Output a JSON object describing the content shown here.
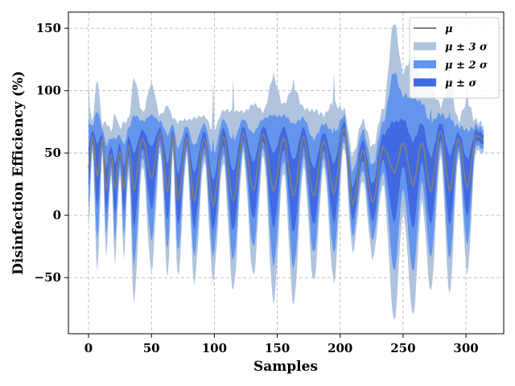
{
  "chart_data": {
    "type": "area",
    "xlabel": "Samples",
    "ylabel": "Disinfection Efficiency (%)",
    "xlim": [
      -16,
      330
    ],
    "ylim": [
      -95,
      163
    ],
    "xticks": [
      0,
      50,
      100,
      150,
      200,
      250,
      300
    ],
    "yticks": [
      -50,
      0,
      50,
      100,
      150
    ],
    "xtick_labels": [
      "0",
      "50",
      "100",
      "150",
      "200",
      "250",
      "300"
    ],
    "ytick_labels": [
      "−50",
      "0",
      "50",
      "100",
      "150"
    ],
    "grid": true,
    "legend_position": "top-right",
    "n_samples": 315,
    "dips": [
      {
        "x": 0,
        "mean": 38,
        "sd": 16
      },
      {
        "x": 7,
        "mean": 32,
        "sd": 25
      },
      {
        "x": 14,
        "mean": 20,
        "sd": 17
      },
      {
        "x": 21,
        "mean": 22,
        "sd": 19
      },
      {
        "x": 28,
        "mean": 20,
        "sd": 17
      },
      {
        "x": 36,
        "mean": 20,
        "sd": 29
      },
      {
        "x": 50,
        "mean": 30,
        "sd": 24
      },
      {
        "x": 63,
        "mean": 18,
        "sd": 22
      },
      {
        "x": 71,
        "mean": 12,
        "sd": 20
      },
      {
        "x": 84,
        "mean": 12,
        "sd": 21
      },
      {
        "x": 99,
        "mean": 8,
        "sd": 19
      },
      {
        "x": 115,
        "mean": 12,
        "sd": 23
      },
      {
        "x": 131,
        "mean": 20,
        "sd": 22
      },
      {
        "x": 147,
        "mean": 20,
        "sd": 29
      },
      {
        "x": 163,
        "mean": 16,
        "sd": 28
      },
      {
        "x": 179,
        "mean": 15,
        "sd": 22
      },
      {
        "x": 195,
        "mean": 18,
        "sd": 23
      },
      {
        "x": 210,
        "mean": 10,
        "sd": 12
      },
      {
        "x": 226,
        "mean": 10,
        "sd": 14
      },
      {
        "x": 243,
        "mean": 35,
        "sd": 39
      },
      {
        "x": 258,
        "mean": 25,
        "sd": 34
      },
      {
        "x": 272,
        "mean": 20,
        "sd": 26
      },
      {
        "x": 287,
        "mean": 20,
        "sd": 27
      },
      {
        "x": 301,
        "mean": 22,
        "sd": 22
      }
    ],
    "plateaus": [
      {
        "x": 3,
        "mean": 64,
        "sd": 3
      },
      {
        "x": 11,
        "mean": 62,
        "sd": 3
      },
      {
        "x": 18,
        "mean": 50,
        "sd": 5
      },
      {
        "x": 25,
        "mean": 52,
        "sd": 5
      },
      {
        "x": 32,
        "mean": 57,
        "sd": 6
      },
      {
        "x": 43,
        "mean": 62,
        "sd": 6
      },
      {
        "x": 57,
        "mean": 66,
        "sd": 4
      },
      {
        "x": 67,
        "mean": 64,
        "sd": 4
      },
      {
        "x": 78,
        "mean": 62,
        "sd": 4
      },
      {
        "x": 92,
        "mean": 62,
        "sd": 5
      },
      {
        "x": 107,
        "mean": 63,
        "sd": 6
      },
      {
        "x": 123,
        "mean": 65,
        "sd": 5
      },
      {
        "x": 139,
        "mean": 66,
        "sd": 5
      },
      {
        "x": 155,
        "mean": 62,
        "sd": 8
      },
      {
        "x": 171,
        "mean": 62,
        "sd": 7
      },
      {
        "x": 187,
        "mean": 60,
        "sd": 6
      },
      {
        "x": 203,
        "mean": 70,
        "sd": 4
      },
      {
        "x": 218,
        "mean": 52,
        "sd": 7
      },
      {
        "x": 234,
        "mean": 55,
        "sd": 9
      },
      {
        "x": 250,
        "mean": 58,
        "sd": 18
      },
      {
        "x": 265,
        "mean": 58,
        "sd": 15
      },
      {
        "x": 280,
        "mean": 68,
        "sd": 6
      },
      {
        "x": 294,
        "mean": 62,
        "sd": 4
      },
      {
        "x": 308,
        "mean": 64,
        "sd": 3
      },
      {
        "x": 313,
        "mean": 61,
        "sd": 3
      }
    ],
    "spikes": [
      {
        "x": 0,
        "upper3": 110
      },
      {
        "x": 7,
        "upper3": 105
      },
      {
        "x": 36,
        "upper3": 90
      },
      {
        "x": 63,
        "upper3": 88
      },
      {
        "x": 99,
        "upper3": 108
      },
      {
        "x": 115,
        "upper3": 110
      },
      {
        "x": 147,
        "upper3": 115
      },
      {
        "x": 163,
        "upper3": 110
      },
      {
        "x": 195,
        "upper3": 115
      },
      {
        "x": 243,
        "upper3": 152
      },
      {
        "x": 258,
        "upper3": 125
      },
      {
        "x": 272,
        "upper3": 140
      },
      {
        "x": 287,
        "upper3": 135
      },
      {
        "x": 301,
        "upper3": 108
      }
    ],
    "series": [
      {
        "name": "μ",
        "color": "#808080",
        "kind": "line"
      },
      {
        "name": "μ ± 3 σ",
        "color": "#b0c4de",
        "kind": "band",
        "k": 3
      },
      {
        "name": "μ ± 2 σ",
        "color": "#6495ed",
        "kind": "band",
        "k": 2
      },
      {
        "name": "μ ±  σ",
        "color": "#4169e1",
        "kind": "band",
        "k": 1
      }
    ]
  }
}
